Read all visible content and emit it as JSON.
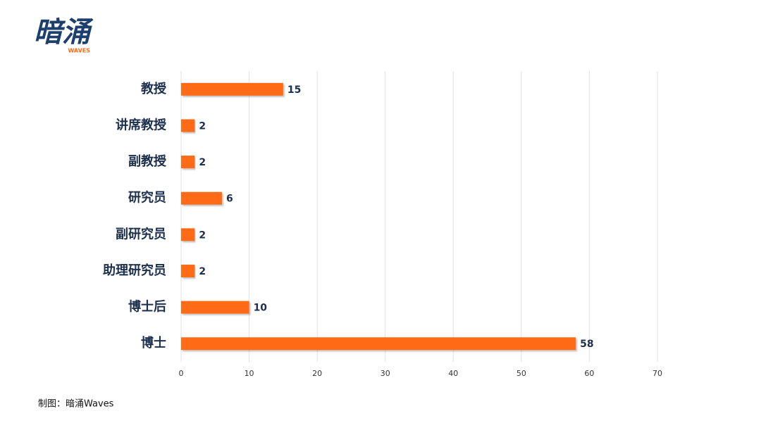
{
  "logo": {
    "text": "暗涌",
    "subtext": "WAVES"
  },
  "chart_data": {
    "type": "bar",
    "orientation": "horizontal",
    "categories": [
      "教授",
      "讲席教授",
      "副教授",
      "研究员",
      "副研究员",
      "助理研究员",
      "博士后",
      "博士"
    ],
    "values": [
      15,
      2,
      2,
      6,
      2,
      2,
      10,
      58
    ],
    "color": "#ff6a13",
    "xlim": [
      0,
      70
    ],
    "xticks": [
      0,
      10,
      20,
      30,
      40,
      50,
      60,
      70
    ],
    "grid": true,
    "value_labels_shown": true
  },
  "footer": "制图：暗涌Waves"
}
